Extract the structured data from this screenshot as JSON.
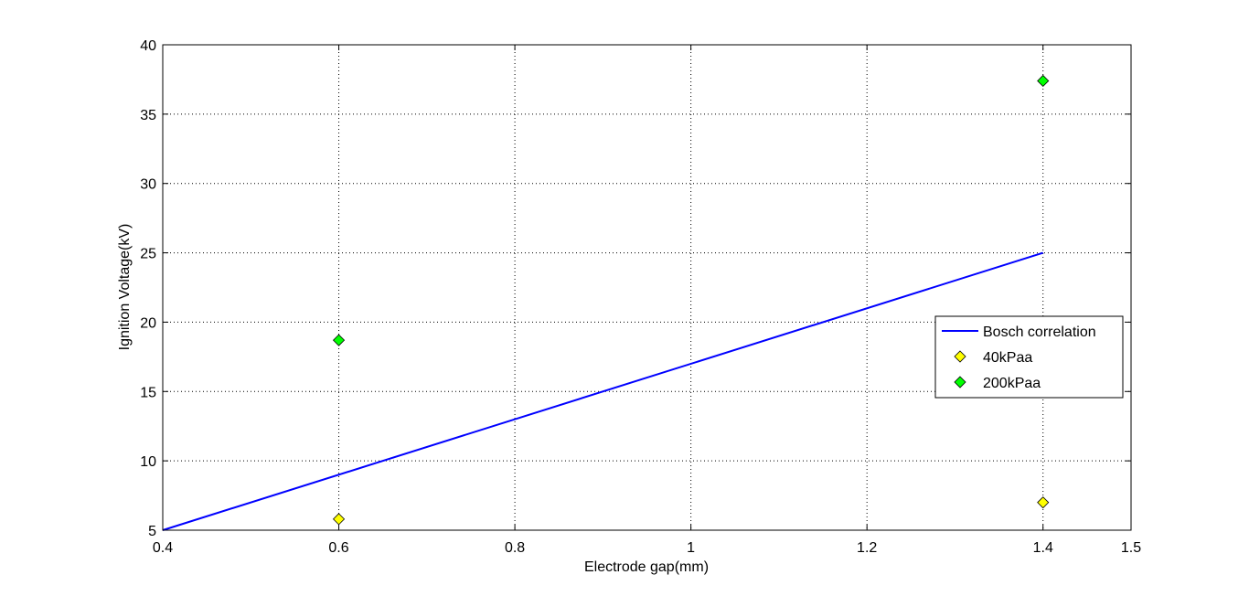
{
  "chart_data": {
    "type": "line",
    "title": "",
    "xlabel": "Electrode gap(mm)",
    "ylabel": "Ignition Voltage(kV)",
    "xlim": [
      0.4,
      1.5
    ],
    "ylim": [
      5,
      40
    ],
    "xticks": [
      0.4,
      0.6,
      0.8,
      1,
      1.2,
      1.4,
      1.5
    ],
    "yticks": [
      5,
      10,
      15,
      20,
      25,
      30,
      35,
      40
    ],
    "grid": true,
    "legend_position": "right",
    "series": [
      {
        "name": "Bosch correlation",
        "type": "line",
        "color": "#0000ff",
        "x": [
          0.4,
          1.4
        ],
        "y": [
          5,
          25
        ]
      },
      {
        "name": "40kPaa",
        "type": "scatter",
        "marker": "diamond",
        "color": "#ffff00",
        "x": [
          0.6,
          1.4
        ],
        "y": [
          5.8,
          7.0
        ]
      },
      {
        "name": "200kPaa",
        "type": "scatter",
        "marker": "diamond",
        "color": "#00ff00",
        "x": [
          0.6,
          1.4
        ],
        "y": [
          18.7,
          37.4
        ]
      }
    ]
  }
}
